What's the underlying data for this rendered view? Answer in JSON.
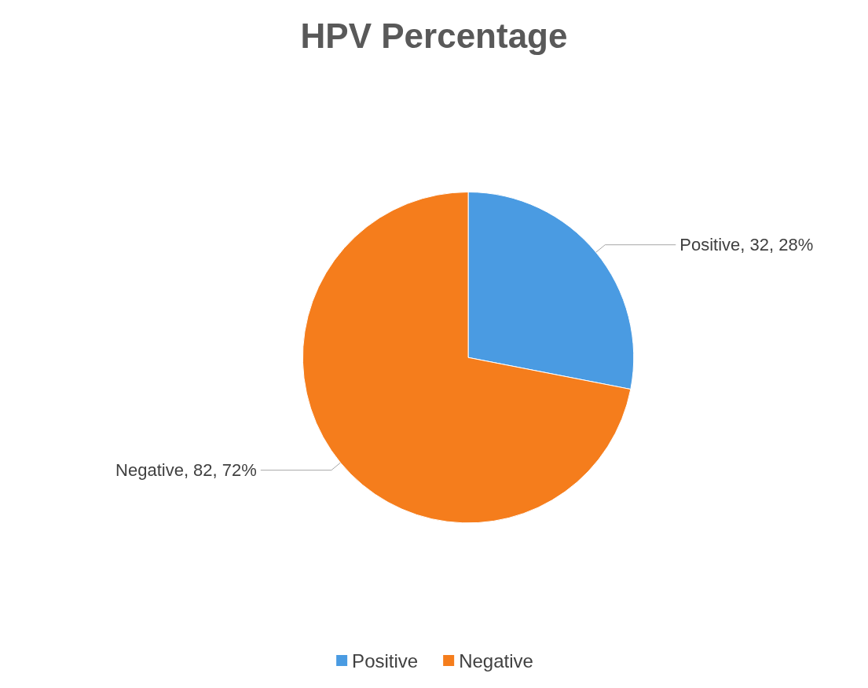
{
  "chart_data": {
    "type": "pie",
    "title": "HPV Percentage",
    "categories": [
      "Positive",
      "Negative"
    ],
    "values": [
      32,
      82
    ],
    "colors": [
      "#4a9be2",
      "#f57d1c"
    ],
    "value_labels": [
      "Positive, 32, 28%",
      "Negative, 82, 72%"
    ],
    "legend": "bottom"
  }
}
